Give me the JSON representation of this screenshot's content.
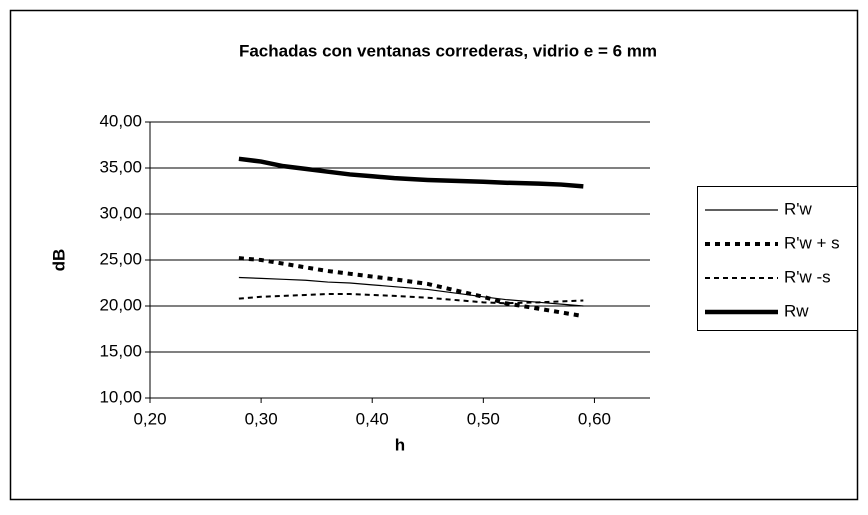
{
  "chart_data": {
    "type": "line",
    "title": "Fachadas con ventanas correderas, vidrio e = 6 mm",
    "x_label": "h",
    "y_label": "dB",
    "x": [
      0.28,
      0.3,
      0.32,
      0.34,
      0.36,
      0.38,
      0.4,
      0.42,
      0.45,
      0.5,
      0.52,
      0.55,
      0.57,
      0.59
    ],
    "series": [
      {
        "name": "R'w",
        "color": "#000000",
        "style": "thin",
        "values": [
          23.1,
          23.0,
          22.9,
          22.8,
          22.6,
          22.5,
          22.3,
          22.1,
          21.8,
          21.0,
          20.7,
          20.4,
          20.2,
          20.0
        ]
      },
      {
        "name": "R'w + s",
        "color": "#000000",
        "style": "dotted",
        "values": [
          25.2,
          25.0,
          24.6,
          24.2,
          23.8,
          23.5,
          23.2,
          22.9,
          22.4,
          21.0,
          20.3,
          19.7,
          19.3,
          18.9
        ]
      },
      {
        "name": "R'w -s",
        "color": "#000000",
        "style": "dashed",
        "values": [
          20.8,
          21.0,
          21.1,
          21.2,
          21.3,
          21.3,
          21.2,
          21.1,
          20.9,
          20.4,
          20.3,
          20.4,
          20.5,
          20.6
        ]
      },
      {
        "name": "Rw",
        "color": "#000000",
        "style": "thick",
        "values": [
          36.0,
          35.7,
          35.2,
          34.9,
          34.6,
          34.3,
          34.1,
          33.9,
          33.7,
          33.5,
          33.4,
          33.3,
          33.2,
          33.0
        ]
      }
    ],
    "xlim": [
      0.2,
      0.65
    ],
    "xticks": [
      {
        "value": 0.2,
        "label": "0,20"
      },
      {
        "value": 0.3,
        "label": "0,30"
      },
      {
        "value": 0.4,
        "label": "0,40"
      },
      {
        "value": 0.5,
        "label": "0,50"
      },
      {
        "value": 0.6,
        "label": "0,60"
      }
    ],
    "ylim": [
      10,
      40
    ],
    "yticks": [
      {
        "value": 10,
        "label": "10,00"
      },
      {
        "value": 15,
        "label": "15,00"
      },
      {
        "value": 20,
        "label": "20,00"
      },
      {
        "value": 25,
        "label": "25,00"
      },
      {
        "value": 30,
        "label": "30,00"
      },
      {
        "value": 35,
        "label": "35,00"
      },
      {
        "value": 40,
        "label": "40,00"
      }
    ],
    "grid": true,
    "legend": "right"
  }
}
